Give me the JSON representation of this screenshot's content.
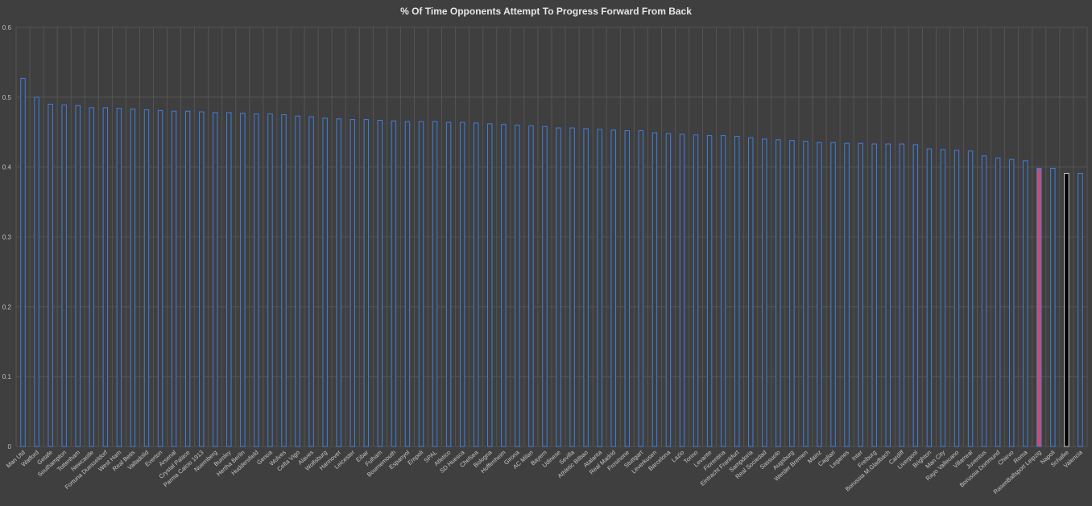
{
  "chart_data": {
    "type": "bar",
    "title": "% Of Time Opponents Attempt To Progress Forward From Back",
    "xlabel": "",
    "ylabel": "",
    "ylim": [
      0,
      0.6
    ],
    "yticks": [
      0,
      0.1,
      0.2,
      0.3,
      0.4,
      0.5,
      0.6
    ],
    "ytick_labels": [
      "0",
      "0.1",
      "0.2",
      "0.3",
      "0.4",
      "0.5",
      "0.6"
    ],
    "grid": true,
    "legend": "none",
    "categories": [
      "Man Utd",
      "Watford",
      "Getafe",
      "Southampton",
      "Tottenham",
      "Newcastle",
      "Fortuna Duesseldorf",
      "West Ham",
      "Real Betis",
      "Valladolid",
      "Everton",
      "Arsenal",
      "Crystal Palace",
      "Parma Calcio 1913",
      "Nuernberg",
      "Burnley",
      "Hertha Berlin",
      "Huddersfield",
      "Genoa",
      "Wolves",
      "Celta Vigo",
      "Alaves",
      "Wolfsburg",
      "Hannover",
      "Leicester",
      "Eibar",
      "Fulham",
      "Bournemouth",
      "Espanyol",
      "Empoli",
      "SPAL",
      "Atletico",
      "SD Huesca",
      "Chelsea",
      "Bologna",
      "Hoffenheim",
      "Girona",
      "AC Milan",
      "Bayern",
      "Udinese",
      "Sevilla",
      "Athletic Bilbao",
      "Atalanta",
      "Real Madrid",
      "Frosinone",
      "Stuttgart",
      "Leverkusen",
      "Barcelona",
      "Lazio",
      "Torino",
      "Levante",
      "Fiorentina",
      "Eintracht Frankfurt",
      "Sampdoria",
      "Real Sociedad",
      "Sassuolo",
      "Augsburg",
      "Werder Bremen",
      "Mainz",
      "Cagliari",
      "Leganes",
      "Inter",
      "Freiburg",
      "Borussia M.Gladbach",
      "Cardiff",
      "Liverpool",
      "Brighton",
      "Man City",
      "Rayo Vallecano",
      "Villarreal",
      "Juventus",
      "Borussia Dortmund",
      "Chievo",
      "Roma",
      "RasenBallsport Leipzig",
      "Napoli",
      "Schalke",
      "Valencia"
    ],
    "values": [
      0.527,
      0.5,
      0.49,
      0.489,
      0.488,
      0.485,
      0.485,
      0.484,
      0.483,
      0.482,
      0.481,
      0.48,
      0.48,
      0.479,
      0.478,
      0.478,
      0.477,
      0.476,
      0.476,
      0.475,
      0.473,
      0.472,
      0.47,
      0.469,
      0.468,
      0.468,
      0.467,
      0.466,
      0.465,
      0.465,
      0.465,
      0.464,
      0.464,
      0.463,
      0.462,
      0.461,
      0.46,
      0.459,
      0.458,
      0.456,
      0.456,
      0.455,
      0.454,
      0.453,
      0.452,
      0.452,
      0.449,
      0.448,
      0.447,
      0.446,
      0.445,
      0.445,
      0.444,
      0.442,
      0.44,
      0.439,
      0.438,
      0.437,
      0.435,
      0.435,
      0.434,
      0.434,
      0.433,
      0.433,
      0.433,
      0.432,
      0.426,
      0.425,
      0.424,
      0.423,
      0.416,
      0.413,
      0.411,
      0.409,
      0.398,
      0.398,
      0.391,
      0.391
    ],
    "colors": {
      "default_fill": "#3f3f3f",
      "default_stroke": "#3f7fe0",
      "highlight_fill_1": "#d04a6c",
      "highlight_stroke_1": "#3f7fe0",
      "highlight_fill_2": "#000000",
      "highlight_stroke_2": "#c8c8c8",
      "background": "#3f3f3f",
      "gridline": "#5a5a5a",
      "text": "#e6e6e6"
    },
    "highlights": [
      {
        "category": "RasenBallsport Leipzig",
        "style": "highlight_1"
      },
      {
        "category": "Schalke",
        "style": "highlight_2"
      }
    ]
  }
}
